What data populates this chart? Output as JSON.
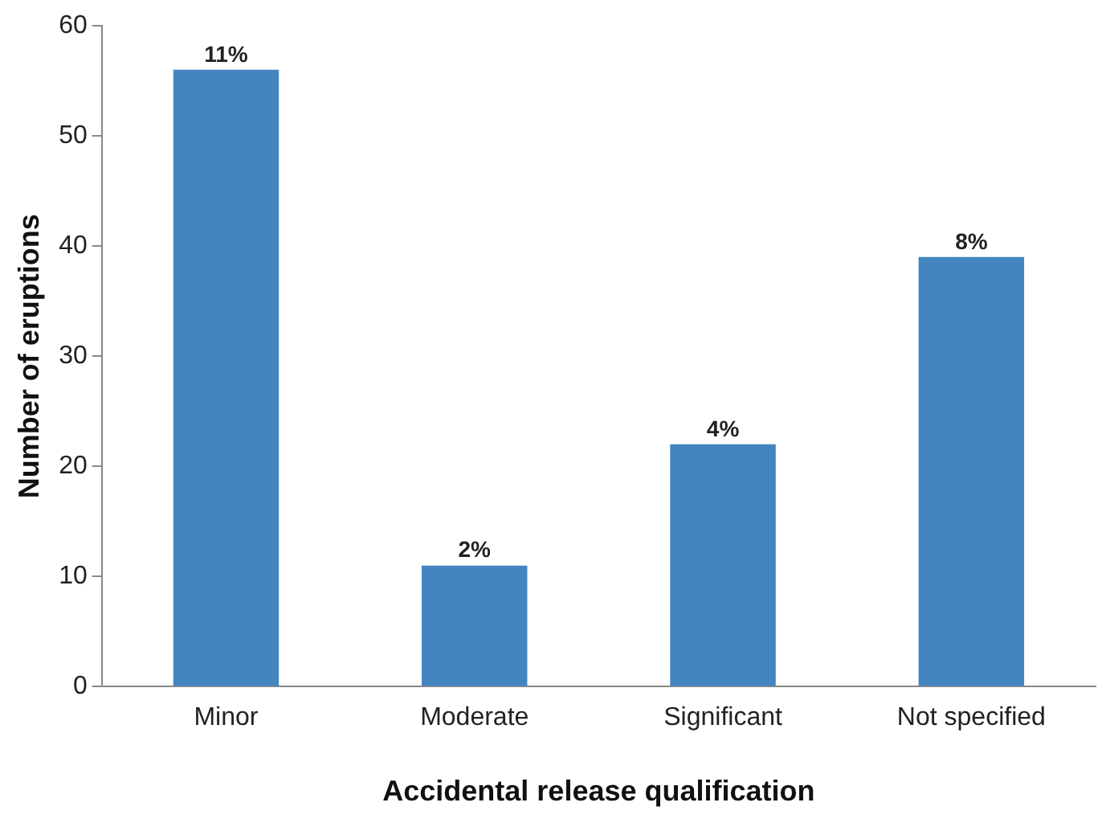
{
  "chart_data": {
    "type": "bar",
    "xlabel": "Accidental release qualification",
    "ylabel": "Number of eruptions",
    "categories": [
      "Minor",
      "Moderate",
      "Significant",
      "Not specified"
    ],
    "values": [
      56,
      11,
      22,
      39
    ],
    "annotations": [
      {
        "text": "11%",
        "x": "Minor",
        "y": 56
      },
      {
        "text": "2%",
        "x": "Moderate",
        "y": 11
      },
      {
        "text": "4%",
        "x": "Significant",
        "y": 22
      },
      {
        "text": "8%",
        "x": "Not specified",
        "y": 39
      }
    ],
    "color": "#4485c1",
    "ylim": [
      0,
      60
    ],
    "yticks": [
      0,
      10,
      20,
      30,
      40,
      50,
      60
    ],
    "grid": false,
    "legend": false
  }
}
